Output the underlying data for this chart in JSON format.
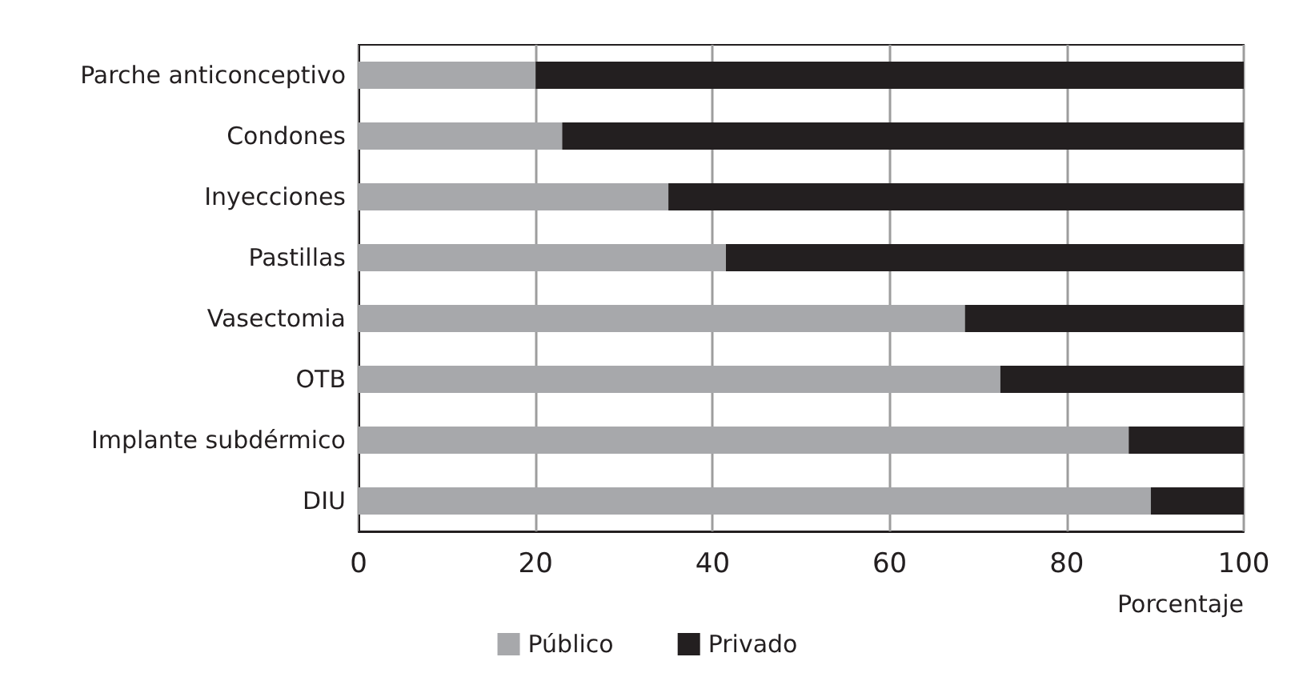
{
  "chart_data": {
    "type": "bar",
    "orientation": "horizontal",
    "stacked": true,
    "xlabel": "Porcentaje",
    "categories": [
      "Parche anticonceptivo",
      "Condones",
      "Inyecciones",
      "Pastillas",
      "Vasectomia",
      "OTB",
      "Implante subdérmico",
      "DIU"
    ],
    "series": [
      {
        "name": "Público",
        "color": "#a7a8ab",
        "values": [
          20,
          23,
          35,
          41.5,
          68.5,
          72.5,
          87,
          89.5
        ]
      },
      {
        "name": "Privado",
        "color": "#231f20",
        "values": [
          80,
          77,
          65,
          58.5,
          31.5,
          27.5,
          13,
          10.5
        ]
      }
    ],
    "xlim": [
      0,
      100
    ],
    "xticks": [
      0,
      20,
      40,
      60,
      80,
      100
    ],
    "grid": "x",
    "legend": "bottom"
  }
}
